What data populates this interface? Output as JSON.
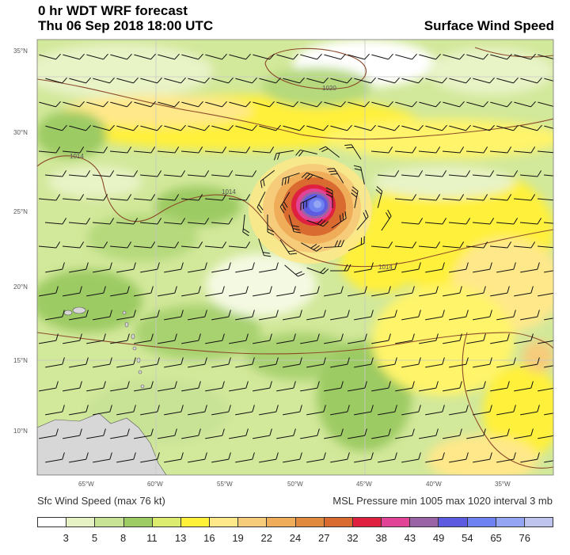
{
  "header": {
    "line1": "0 hr WDT WRF forecast",
    "line2": "Thu 06 Sep 2018 18:00 UTC",
    "product": "Surface Wind Speed"
  },
  "map": {
    "lat_labels": [
      "35°N",
      "30°N",
      "25°N",
      "20°N",
      "15°N",
      "10°N"
    ],
    "lon_labels": [
      "65°W",
      "60°W",
      "55°W",
      "50°W",
      "45°W",
      "40°W",
      "35°W"
    ],
    "isobar_labels": [
      "1020",
      "1014",
      "1014",
      "1014"
    ],
    "colors": {
      "land": "#d7d7d7",
      "isobar": "#8b4a2b",
      "gridline": "#c8c8c8"
    }
  },
  "footer": {
    "left": "Sfc Wind Speed (max 76 kt)",
    "right": "MSL Pressure min 1005 max 1020 interval 3 mb"
  },
  "legend": {
    "colors": [
      "#ffffff",
      "#e6f2c3",
      "#c8e296",
      "#9dcb64",
      "#dcec6e",
      "#fff03a",
      "#ffe88a",
      "#f6cc7a",
      "#efac59",
      "#e08a3e",
      "#d96a30",
      "#e0203f",
      "#e14496",
      "#9a63a6",
      "#5d5be0",
      "#6e82f1",
      "#93a5f3",
      "#bfc4ee"
    ],
    "ticks": [
      "3",
      "5",
      "8",
      "11",
      "13",
      "16",
      "19",
      "22",
      "24",
      "27",
      "32",
      "38",
      "43",
      "49",
      "54",
      "65",
      "76"
    ]
  }
}
